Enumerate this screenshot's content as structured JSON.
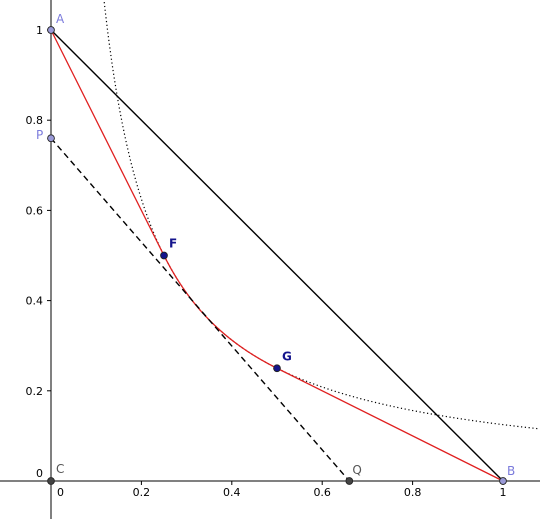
{
  "chart_data": {
    "type": "scatter",
    "x_tick_labels": [
      "0",
      "0.2",
      "0.4",
      "0.6",
      "0.8",
      "1"
    ],
    "y_tick_labels": [
      "0",
      "0.2",
      "0.4",
      "0.6",
      "0.8",
      "1"
    ],
    "x_ticks": [
      0,
      0.2,
      0.4,
      0.6,
      0.8,
      1
    ],
    "y_ticks": [
      0,
      0.2,
      0.4,
      0.6,
      0.8,
      1
    ],
    "xlim": [
      -0.11,
      1.08
    ],
    "ylim": [
      -0.08,
      1.06
    ],
    "points": [
      {
        "label": "A",
        "x": 0,
        "y": 1,
        "color": "#7b7bdc",
        "bold": false,
        "fill": "#9a9ad8"
      },
      {
        "label": "B",
        "x": 1,
        "y": 0,
        "color": "#7b7bdc",
        "bold": false,
        "fill": "#9a9ad8"
      },
      {
        "label": "C",
        "x": 0,
        "y": 0,
        "color": "#555555",
        "bold": false,
        "fill": "#444444"
      },
      {
        "label": "P",
        "x": 0,
        "y": 0.76,
        "color": "#7b7bdc",
        "bold": false,
        "fill": "#9a9ad8"
      },
      {
        "label": "Q",
        "x": 0.66,
        "y": 0,
        "color": "#555555",
        "bold": false,
        "fill": "#444444"
      },
      {
        "label": "F",
        "x": 0.25,
        "y": 0.5,
        "color": "#14148c",
        "bold": true,
        "fill": "#14148c"
      },
      {
        "label": "G",
        "x": 0.5,
        "y": 0.25,
        "color": "#14148c",
        "bold": true,
        "fill": "#14148c"
      }
    ],
    "segments": [
      {
        "name": "AB",
        "from": [
          0,
          1
        ],
        "to": [
          1,
          0
        ],
        "color": "#000000",
        "style": "solid"
      },
      {
        "name": "PQ",
        "from": [
          0,
          0.76
        ],
        "to": [
          0.66,
          0
        ],
        "color": "#000000",
        "style": "dashed"
      },
      {
        "name": "AF",
        "from": [
          0,
          1
        ],
        "to": [
          0.25,
          0.5
        ],
        "color": "#e02020",
        "style": "solid"
      },
      {
        "name": "GB",
        "from": [
          0.5,
          0.25
        ],
        "to": [
          1,
          0
        ],
        "color": "#e02020",
        "style": "solid"
      }
    ],
    "curves": [
      {
        "name": "hyperbola y=1/(8x)",
        "k": 0.125,
        "color": "#000000",
        "style": "dotted",
        "x_from": 0.115,
        "x_to": 1.08
      },
      {
        "name": "arc FG on y=1/(8x)",
        "k": 0.125,
        "color": "#e02020",
        "style": "solid",
        "x_from": 0.25,
        "x_to": 0.5
      }
    ],
    "grid": false,
    "colors": {
      "red": "#e02020",
      "black": "#000000",
      "point_light": "#9a9ad8",
      "point_dark": "#14148c"
    }
  }
}
